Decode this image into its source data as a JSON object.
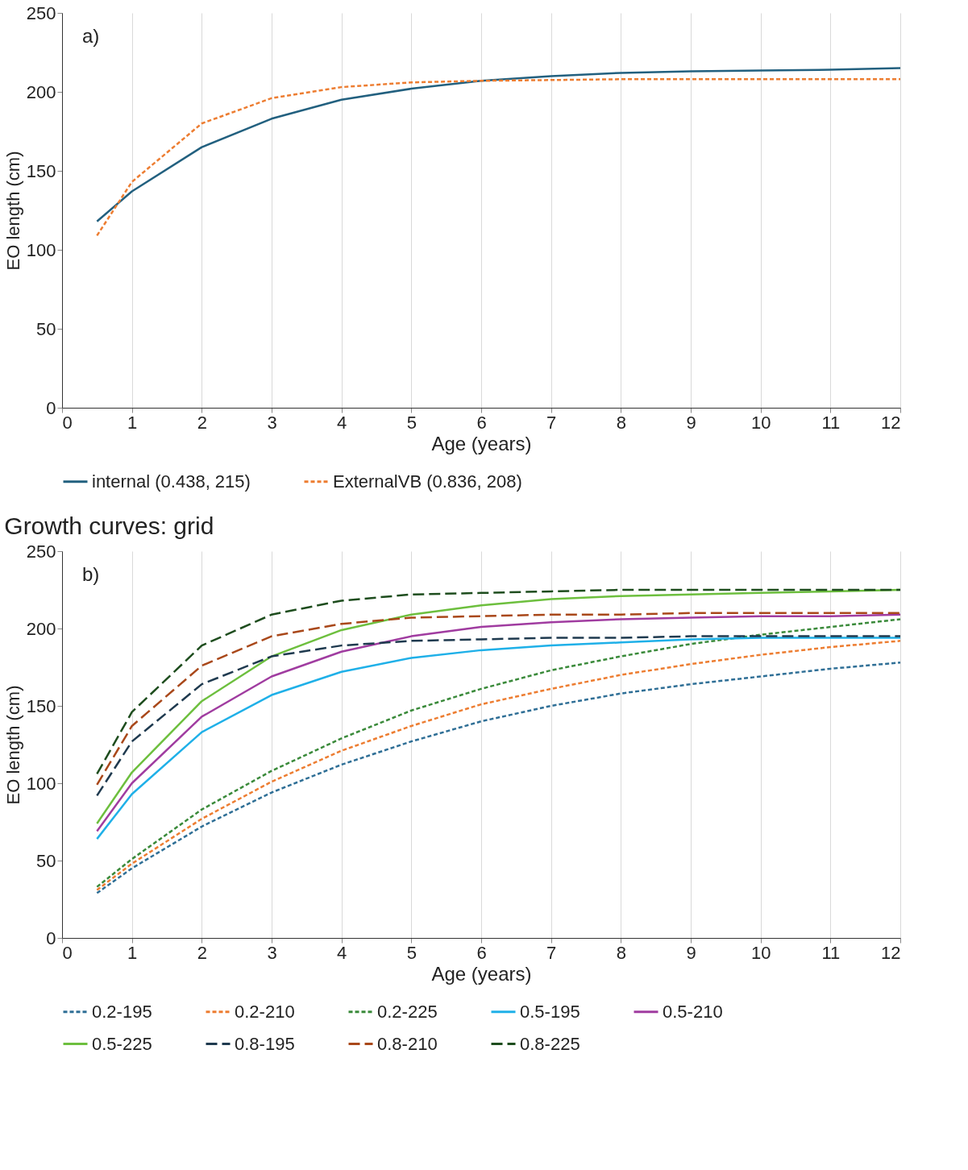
{
  "chart_data": [
    {
      "type": "line",
      "ylabel": "EO length (cm)",
      "xlabel": "Age (years)",
      "annotations": [
        "a)"
      ],
      "x": [
        0.5,
        1,
        2,
        3,
        4,
        5,
        6,
        7,
        8,
        9,
        10,
        11,
        12
      ],
      "xlim": [
        0,
        12
      ],
      "xticks": [
        0,
        1,
        2,
        3,
        4,
        5,
        6,
        7,
        8,
        9,
        10,
        11,
        12
      ],
      "ylim": [
        0,
        250
      ],
      "yticks": [
        0,
        50,
        100,
        150,
        200,
        250
      ],
      "grid": "x",
      "legend": "bottom",
      "series": [
        {
          "name": "internal (0.438, 215)",
          "color": "#22607f",
          "line_style": "solid",
          "values": [
            118,
            137,
            165,
            183,
            195,
            202,
            207,
            210,
            212,
            213,
            213.5,
            214,
            215
          ]
        },
        {
          "name": "ExternalVB (0.836, 208)",
          "color": "#ed7d31",
          "line_style": "dotted",
          "values": [
            109,
            143,
            180,
            196,
            203,
            206,
            207,
            207.5,
            208,
            208,
            208,
            208,
            208
          ]
        }
      ]
    },
    {
      "type": "line",
      "title": "Growth curves: grid",
      "ylabel": "EO length (cm)",
      "xlabel": "Age (years)",
      "annotations": [
        "b)"
      ],
      "x": [
        0.5,
        1,
        2,
        3,
        4,
        5,
        6,
        7,
        8,
        9,
        10,
        11,
        12
      ],
      "xlim": [
        0,
        12
      ],
      "xticks": [
        0,
        1,
        2,
        3,
        4,
        5,
        6,
        7,
        8,
        9,
        10,
        11,
        12
      ],
      "ylim": [
        0,
        250
      ],
      "yticks": [
        0,
        50,
        100,
        150,
        200,
        250
      ],
      "grid": "x",
      "legend": "bottom",
      "series": [
        {
          "name": "0.2-195",
          "color": "#2f6f96",
          "line_style": "dotted",
          "values": [
            29,
            45,
            72,
            94,
            112,
            127,
            140,
            150,
            158,
            164,
            169,
            174,
            178
          ]
        },
        {
          "name": "0.2-210",
          "color": "#ed7d31",
          "line_style": "dotted",
          "values": [
            31,
            48,
            77,
            101,
            121,
            137,
            151,
            161,
            170,
            177,
            183,
            188,
            192
          ]
        },
        {
          "name": "0.2-225",
          "color": "#3a8a3a",
          "line_style": "dotted",
          "values": [
            33,
            51,
            83,
            108,
            129,
            147,
            161,
            173,
            182,
            190,
            196,
            201,
            206
          ]
        },
        {
          "name": "0.5-195",
          "color": "#1fb0e8",
          "line_style": "solid",
          "values": [
            64,
            93,
            133,
            157,
            172,
            181,
            186,
            189,
            191,
            193,
            194,
            194,
            194
          ]
        },
        {
          "name": "0.5-210",
          "color": "#a03ca0",
          "line_style": "solid",
          "values": [
            69,
            100,
            143,
            169,
            185,
            195,
            201,
            204,
            206,
            207,
            208,
            208,
            209
          ]
        },
        {
          "name": "0.5-225",
          "color": "#6dbf3e",
          "line_style": "solid",
          "values": [
            74,
            107,
            153,
            182,
            199,
            209,
            215,
            219,
            221,
            222,
            223,
            224,
            225
          ]
        },
        {
          "name": "0.8-195",
          "color": "#1f3a4f",
          "line_style": "dashed",
          "values": [
            92,
            127,
            164,
            182,
            189,
            192,
            193,
            194,
            194,
            195,
            195,
            195,
            195
          ]
        },
        {
          "name": "0.8-210",
          "color": "#a9481a",
          "line_style": "dashed",
          "values": [
            99,
            137,
            176,
            195,
            203,
            207,
            208,
            209,
            209,
            210,
            210,
            210,
            210
          ]
        },
        {
          "name": "0.8-225",
          "color": "#1e4d1e",
          "line_style": "dashed",
          "values": [
            106,
            146,
            189,
            209,
            218,
            222,
            223,
            224,
            225,
            225,
            225,
            225,
            225
          ]
        }
      ]
    }
  ]
}
